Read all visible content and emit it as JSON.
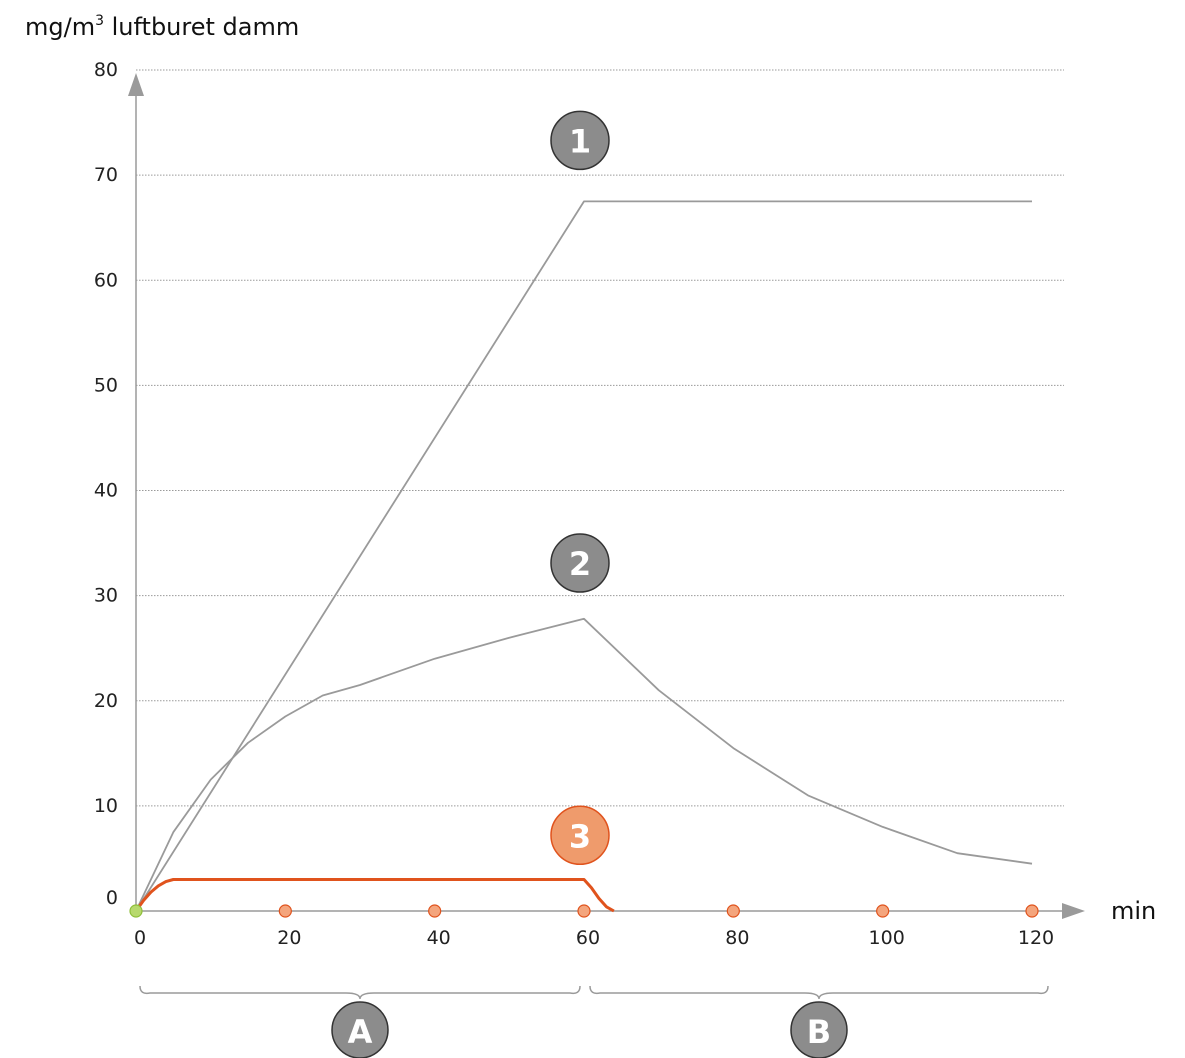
{
  "chart_data": {
    "type": "line",
    "ylabel_main": "mg/m",
    "ylabel_sup": "3",
    "ylabel_rest": " luftburet damm",
    "xlabel": "min",
    "xlim": [
      0,
      120
    ],
    "ylim": [
      0,
      80
    ],
    "x_ticks": [
      "0",
      "20",
      "40",
      "60",
      "80",
      "100",
      "120"
    ],
    "y_ticks": [
      "0",
      "10",
      "20",
      "30",
      "40",
      "50",
      "60",
      "70",
      "80"
    ],
    "grid": true,
    "series": [
      {
        "label": "1",
        "color": "#9a9a9a",
        "x": [
          0,
          60,
          120
        ],
        "y": [
          0,
          67.5,
          67.5
        ]
      },
      {
        "label": "2",
        "color": "#9a9a9a",
        "x": [
          0,
          5,
          10,
          15,
          20,
          25,
          30,
          40,
          50,
          60,
          70,
          80,
          90,
          100,
          110,
          120
        ],
        "y": [
          0,
          7.5,
          12.5,
          16,
          18.5,
          20.5,
          21.5,
          24,
          26,
          27.8,
          21,
          15.5,
          11,
          8,
          5.5,
          4.5
        ]
      },
      {
        "label": "3",
        "color": "#e0531d",
        "x": [
          0,
          1,
          2,
          3,
          4,
          5,
          60,
          61,
          62,
          63,
          64
        ],
        "y": [
          0,
          1,
          1.8,
          2.4,
          2.8,
          3,
          3,
          2.2,
          1.2,
          0.4,
          0
        ]
      }
    ],
    "markers": {
      "start_color": "#b7d96d",
      "point_color": "#f4a57d",
      "x": [
        0,
        20,
        40,
        60,
        80,
        100,
        120
      ]
    },
    "badges": [
      {
        "text": "1",
        "color": "#8c8c8c"
      },
      {
        "text": "2",
        "color": "#8c8c8c"
      },
      {
        "text": "3",
        "color": "#ef9b6c"
      }
    ],
    "brackets": [
      {
        "label": "A",
        "from": 0,
        "to": 60,
        "color": "#8c8c8c"
      },
      {
        "label": "B",
        "from": 60,
        "to": 120,
        "color": "#8c8c8c"
      }
    ]
  }
}
